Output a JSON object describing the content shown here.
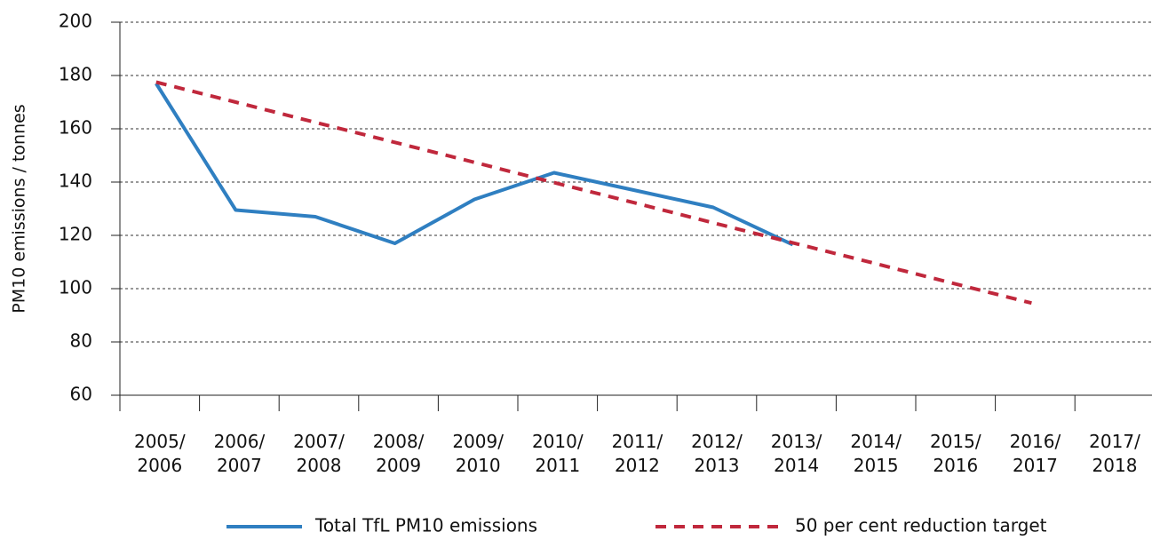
{
  "chart_data": {
    "type": "line",
    "y_label": "PM10 emissions / tonnes",
    "categories": [
      "2005/\n2006",
      "2006/\n2007",
      "2007/\n2008",
      "2008/\n2009",
      "2009/\n2010",
      "2010/\n2011",
      "2011/\n2012",
      "2012/\n2013",
      "2013/\n2014",
      "2014/\n2015",
      "2015/\n2016",
      "2016/\n2017",
      "2017/\n2018"
    ],
    "series": [
      {
        "name": "Total TfL PM10 emissions",
        "color": "#2f7fc1",
        "dash": false,
        "values": [
          177,
          129.5,
          127,
          117,
          133.5,
          143.5,
          137,
          130.5,
          116.5,
          null,
          null,
          null,
          null
        ]
      },
      {
        "name": "50 per cent reduction target",
        "color": "#c0283c",
        "dash": true,
        "values": [
          177.5,
          170,
          162.4,
          154.9,
          147.4,
          139.8,
          132.3,
          124.7,
          117.2,
          109.7,
          102.1,
          94.6,
          null
        ]
      }
    ],
    "ylim": [
      60,
      200
    ],
    "yticks": [
      60,
      80,
      100,
      120,
      140,
      160,
      180,
      200
    ],
    "grid": true
  }
}
